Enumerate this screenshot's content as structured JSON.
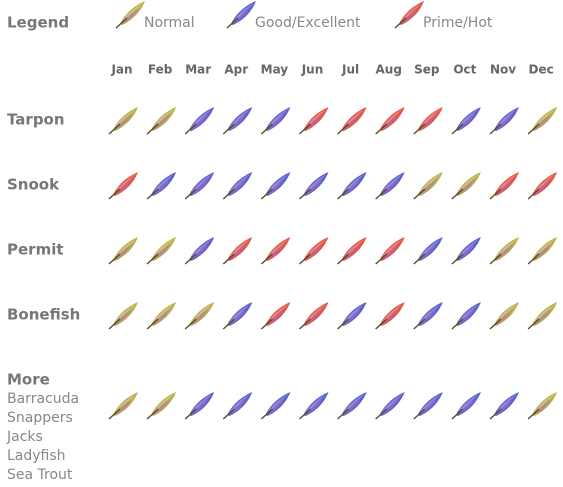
{
  "legend": {
    "title": "Legend",
    "items": [
      {
        "label": "Normal",
        "color": "#b3aa36"
      },
      {
        "label": "Good/Excellent",
        "color": "#4a4fc8"
      },
      {
        "label": "Prime/Hot",
        "color": "#e0442e"
      }
    ]
  },
  "months": [
    "Jan",
    "Feb",
    "Mar",
    "Apr",
    "May",
    "Jun",
    "Jul",
    "Aug",
    "Sep",
    "Oct",
    "Nov",
    "Dec"
  ],
  "rows": [
    {
      "label": "Tarpon",
      "cells": [
        "Normal",
        "Normal",
        "Good/Excellent",
        "Good/Excellent",
        "Good/Excellent",
        "Prime/Hot",
        "Prime/Hot",
        "Prime/Hot",
        "Prime/Hot",
        "Good/Excellent",
        "Good/Excellent",
        "Normal"
      ]
    },
    {
      "label": "Snook",
      "cells": [
        "Prime/Hot",
        "Good/Excellent",
        "Good/Excellent",
        "Good/Excellent",
        "Good/Excellent",
        "Good/Excellent",
        "Good/Excellent",
        "Good/Excellent",
        "Normal",
        "Normal",
        "Prime/Hot",
        "Prime/Hot"
      ]
    },
    {
      "label": "Permit",
      "cells": [
        "Normal",
        "Normal",
        "Good/Excellent",
        "Prime/Hot",
        "Prime/Hot",
        "Prime/Hot",
        "Prime/Hot",
        "Prime/Hot",
        "Good/Excellent",
        "Good/Excellent",
        "Normal",
        "Normal"
      ]
    },
    {
      "label": "Bonefish",
      "cells": [
        "Normal",
        "Normal",
        "Normal",
        "Good/Excellent",
        "Prime/Hot",
        "Prime/Hot",
        "Good/Excellent",
        "Prime/Hot",
        "Good/Excellent",
        "Good/Excellent",
        "Normal",
        "Normal"
      ]
    },
    {
      "label": "More",
      "sublabels": [
        "Barracuda",
        "Snappers",
        "Jacks",
        "Ladyfish",
        "Sea Trout"
      ],
      "cells": [
        "Normal",
        "Normal",
        "Good/Excellent",
        "Good/Excellent",
        "Good/Excellent",
        "Good/Excellent",
        "Good/Excellent",
        "Good/Excellent",
        "Good/Excellent",
        "Good/Excellent",
        "Good/Excellent",
        "Normal"
      ]
    }
  ]
}
